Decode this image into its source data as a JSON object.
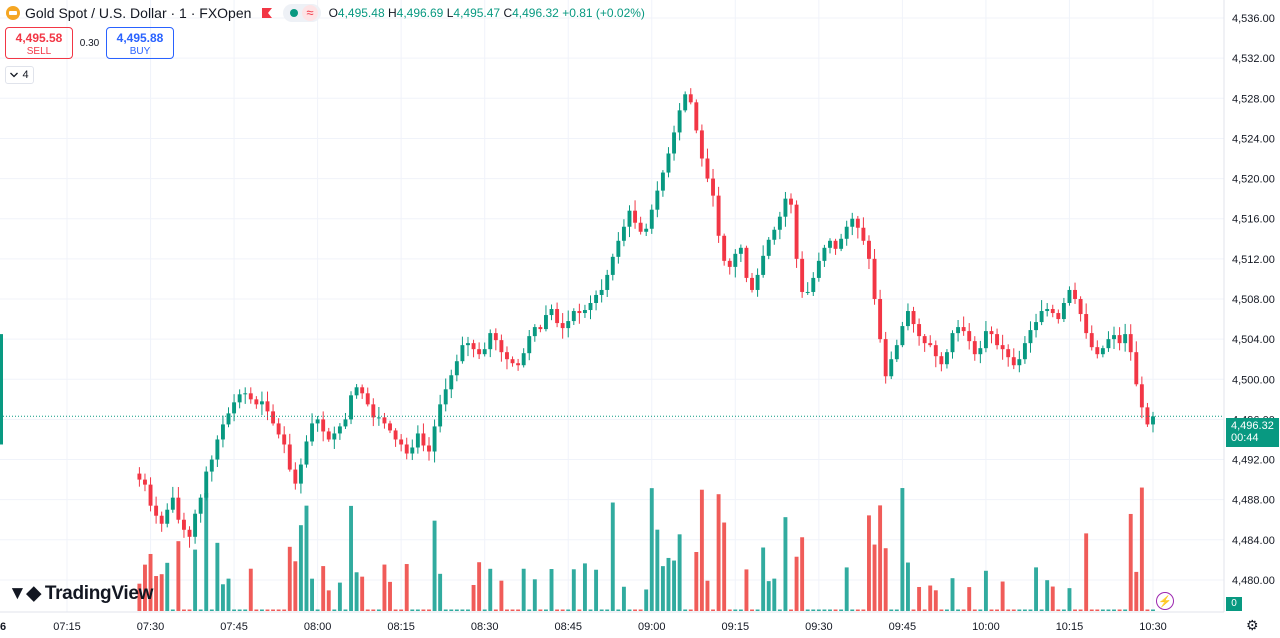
{
  "header": {
    "symbol_title": "Gold Spot / U.S. Dollar · 1 · FXOpen",
    "ohlc": {
      "o_label": "O",
      "o": "4,495.48",
      "h_label": "H",
      "h": "4,496.69",
      "l_label": "L",
      "l": "4,495.47",
      "c_label": "C",
      "c": "4,496.32",
      "change": "+0.81 (+0.02%)"
    },
    "wave_icon": "≈"
  },
  "trade": {
    "sell_price": "4,495.58",
    "sell_label": "SELL",
    "spread": "0.30",
    "buy_price": "4,495.88",
    "buy_label": "BUY"
  },
  "indicators_toggle": {
    "count": "4",
    "icon": "chevron-down-icon"
  },
  "branding": {
    "logo_text": "TradingView"
  },
  "price_axis": {
    "current_price": "4,496.32",
    "countdown": "00:44",
    "volume_value": "0"
  },
  "colors": {
    "up": "#089981",
    "down": "#f23645",
    "vol_up": "#26a69a",
    "vol_down": "#ef5350",
    "grid": "#f0f3fa"
  },
  "chart_data": {
    "type": "candlestick",
    "title": "Gold Spot / U.S. Dollar · 1 · FXOpen",
    "y_ticks": [
      "4,536.00",
      "4,532.00",
      "4,528.00",
      "4,524.00",
      "4,520.00",
      "4,516.00",
      "4,512.00",
      "4,508.00",
      "4,504.00",
      "4,500.00",
      "4,496.00",
      "4,492.00",
      "4,488.00",
      "4,484.00",
      "4,480.00"
    ],
    "ylim": [
      4478.4,
      4537.0
    ],
    "x_ticks": [
      "6",
      "07:15",
      "07:30",
      "07:45",
      "08:00",
      "08:15",
      "08:30",
      "08:45",
      "09:00",
      "09:15",
      "09:30",
      "09:45",
      "10:00",
      "10:15",
      "10:30"
    ],
    "x_tick_times": [
      null,
      435,
      450,
      465,
      480,
      495,
      510,
      525,
      540,
      555,
      570,
      585,
      600,
      615,
      630
    ],
    "current_price": 4496.32,
    "candles_closes": [
      4490.0,
      4489.5,
      4487.4,
      4486.4,
      4485.6,
      4487.0,
      4488.2,
      4486.0,
      4485.0,
      4484.3,
      4486.6,
      4488.2,
      4490.8,
      4492.0,
      4494.0,
      4495.5,
      4496.6,
      4497.7,
      4498.5,
      4498.6,
      4498.0,
      4497.5,
      4497.8,
      4496.8,
      4495.6,
      4494.5,
      4493.5,
      4491.0,
      4489.6,
      4491.5,
      4493.8,
      4495.6,
      4496.0,
      4494.8,
      4494.0,
      4494.6,
      4495.3,
      4496.0,
      4498.4,
      4499.2,
      4498.6,
      4497.5,
      4496.2,
      4496.2,
      4495.6,
      4494.9,
      4494.0,
      4493.5,
      4492.6,
      4493.2,
      4494.6,
      4493.4,
      4492.8,
      4495.3,
      4497.5,
      4499.0,
      4500.4,
      4501.8,
      4503.4,
      4503.6,
      4503.0,
      4502.5,
      4503.0,
      4504.6,
      4503.9,
      4502.7,
      4502.0,
      4501.6,
      4501.4,
      4502.6,
      4504.3,
      4505.2,
      4505.0,
      4506.4,
      4507.0,
      4505.6,
      4505.1,
      4505.8,
      4506.8,
      4506.6,
      4506.9,
      4507.6,
      4508.4,
      4508.9,
      4510.4,
      4512.2,
      4513.8,
      4515.2,
      4516.8,
      4515.6,
      4514.7,
      4515.0,
      4516.9,
      4518.8,
      4520.6,
      4522.5,
      4524.6,
      4526.8,
      4528.4,
      4527.6,
      4524.8,
      4522.0,
      4520.0,
      4518.3,
      4514.3,
      4511.8,
      4511.2,
      4512.5,
      4513.1,
      4510.1,
      4508.9,
      4510.4,
      4512.3,
      4513.9,
      4514.9,
      4516.2,
      4518.0,
      4517.4,
      4512.0,
      4508.7,
      4508.7,
      4510.1,
      4511.8,
      4513.1,
      4513.8,
      4513.0,
      4514.0,
      4515.2,
      4516.0,
      4515.1,
      4513.8,
      4512.0,
      4508.0,
      4504.0,
      4500.3,
      4502.0,
      4503.4,
      4505.3,
      4506.8,
      4505.5,
      4504.3,
      4503.6,
      4503.4,
      4502.3,
      4501.5,
      4502.7,
      4504.6,
      4505.2,
      4504.8,
      4503.8,
      4502.5,
      4503.1,
      4504.8,
      4504.5,
      4503.4,
      4503.0,
      4502.2,
      4501.4,
      4502.0,
      4503.6,
      4504.9,
      4505.7,
      4506.8,
      4507.0,
      4506.6,
      4506.0,
      4507.6,
      4508.9,
      4508.0,
      4506.5,
      4504.6,
      4503.2,
      4502.5,
      4503.1,
      4504.0,
      4504.4,
      4503.6,
      4504.5,
      4502.7,
      4499.5,
      4497.2,
      4495.5,
      4496.3
    ]
  }
}
